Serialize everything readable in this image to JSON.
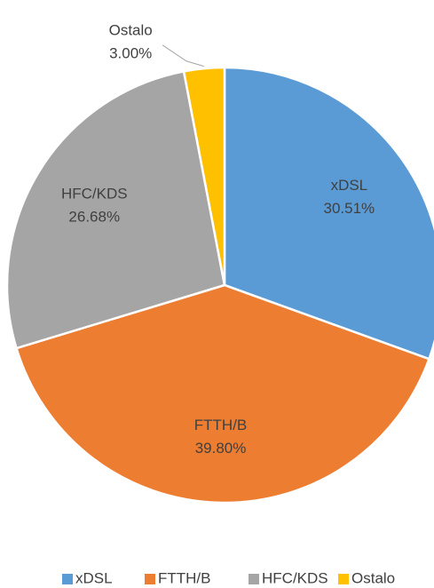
{
  "chart_data": {
    "type": "pie",
    "categories": [
      "xDSL",
      "FTTH/B",
      "HFC/KDS",
      "Ostalo"
    ],
    "values": [
      30.51,
      39.8,
      26.68,
      3.0
    ],
    "value_labels": [
      "30.51%",
      "39.80%",
      "26.68%",
      "3.00%"
    ],
    "colors": [
      "#5b9bd5",
      "#ed7d31",
      "#a5a5a5",
      "#ffc000"
    ],
    "legend": "bottom"
  }
}
